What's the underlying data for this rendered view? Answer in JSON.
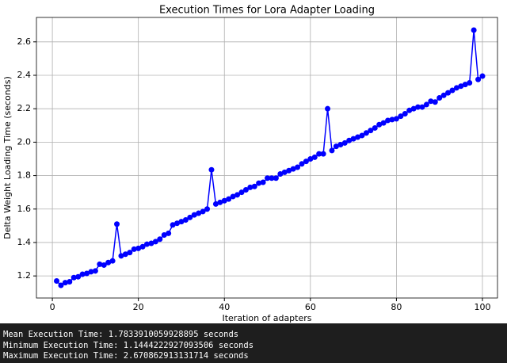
{
  "chart_data": {
    "type": "line",
    "title": "Execution Times for Lora Adapter Loading",
    "xlabel": "Iteration of adapters",
    "ylabel": "Delta Weight Loading Time (seconds)",
    "x": [
      1,
      2,
      3,
      4,
      5,
      6,
      7,
      8,
      9,
      10,
      11,
      12,
      13,
      14,
      15,
      16,
      17,
      18,
      19,
      20,
      21,
      22,
      23,
      24,
      25,
      26,
      27,
      28,
      29,
      30,
      31,
      32,
      33,
      34,
      35,
      36,
      37,
      38,
      39,
      40,
      41,
      42,
      43,
      44,
      45,
      46,
      47,
      48,
      49,
      50,
      51,
      52,
      53,
      54,
      55,
      56,
      57,
      58,
      59,
      60,
      61,
      62,
      63,
      64,
      65,
      66,
      67,
      68,
      69,
      70,
      71,
      72,
      73,
      74,
      75,
      76,
      77,
      78,
      79,
      80,
      81,
      82,
      83,
      84,
      85,
      86,
      87,
      88,
      89,
      90,
      91,
      92,
      93,
      94,
      95,
      96,
      97,
      98,
      99,
      100
    ],
    "values": [
      1.17,
      1.144,
      1.16,
      1.165,
      1.19,
      1.195,
      1.21,
      1.215,
      1.225,
      1.23,
      1.27,
      1.265,
      1.28,
      1.29,
      1.51,
      1.32,
      1.33,
      1.34,
      1.36,
      1.365,
      1.375,
      1.39,
      1.395,
      1.405,
      1.42,
      1.445,
      1.455,
      1.505,
      1.515,
      1.525,
      1.535,
      1.55,
      1.565,
      1.575,
      1.585,
      1.6,
      1.835,
      1.63,
      1.64,
      1.65,
      1.66,
      1.675,
      1.685,
      1.7,
      1.715,
      1.73,
      1.735,
      1.755,
      1.76,
      1.785,
      1.785,
      1.785,
      1.81,
      1.82,
      1.83,
      1.84,
      1.85,
      1.87,
      1.885,
      1.9,
      1.91,
      1.93,
      1.93,
      2.2,
      1.95,
      1.975,
      1.985,
      1.995,
      2.01,
      2.02,
      2.03,
      2.04,
      2.055,
      2.07,
      2.085,
      2.105,
      2.115,
      2.13,
      2.135,
      2.14,
      2.155,
      2.17,
      2.19,
      2.2,
      2.21,
      2.21,
      2.225,
      2.245,
      2.24,
      2.265,
      2.28,
      2.295,
      2.31,
      2.325,
      2.335,
      2.345,
      2.355,
      2.67,
      2.375,
      2.395
    ],
    "color": "#0000ff",
    "xlim": [
      -3.7,
      103.5
    ],
    "ylim": [
      1.068,
      2.746
    ],
    "xticks": [
      0,
      20,
      40,
      60,
      80,
      100
    ],
    "yticks": [
      1.2,
      1.4,
      1.6,
      1.8,
      {
        "value": 2,
        "label": "2.0"
      },
      2.2,
      2.4,
      2.6
    ],
    "grid": true
  },
  "output": {
    "lines": [
      "Mean Execution Time: 1.7833910059928895 seconds",
      "Minimum Execution Time: 1.1444222927093506 seconds",
      "Maximum Execution Time: 2.670862913131714 seconds"
    ]
  }
}
